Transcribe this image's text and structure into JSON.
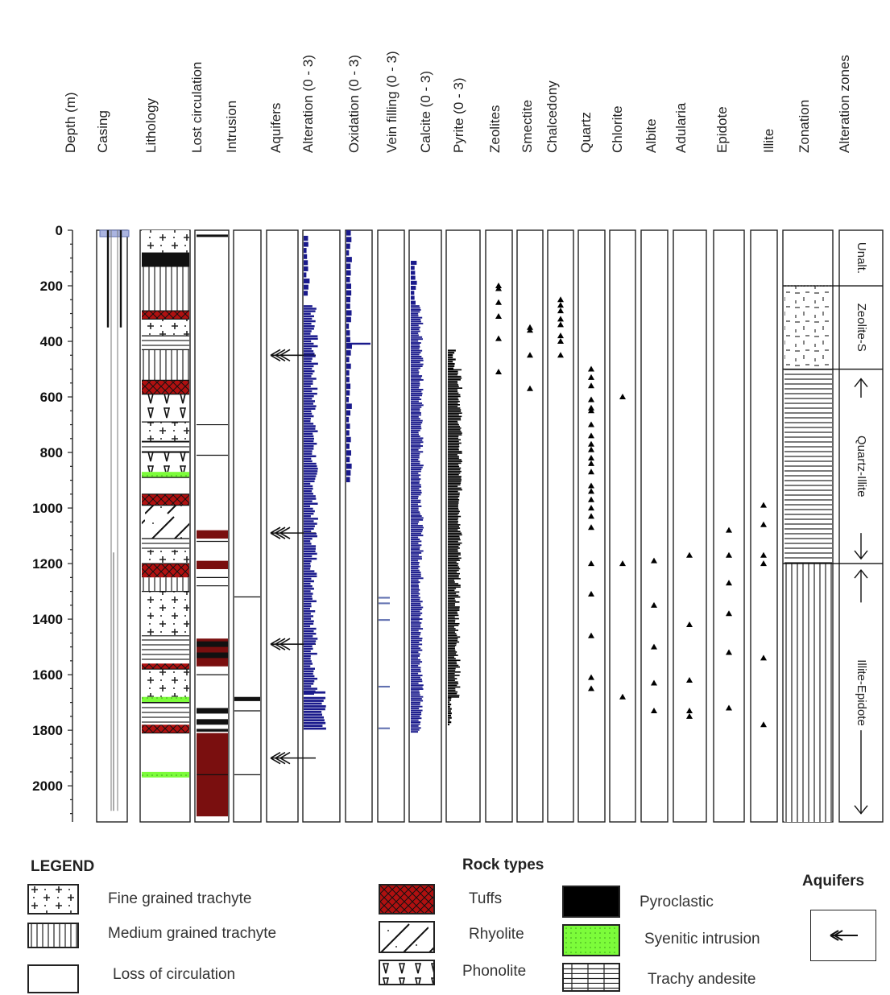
{
  "headers": [
    "Depth (m)",
    "Casing",
    "Lithology",
    "Lost circulation",
    "Intrusion",
    "Aquifers",
    "Alteration (0 - 3)",
    "Oxidation (0 - 3)",
    "Vein filling (0 - 3)",
    "Calcite (0 - 3)",
    "Pyrite (0 - 3)",
    "Zeolites",
    "Smectite",
    "Chalcedony",
    "Quartz",
    "Chlorite",
    "Albite",
    "Adularia",
    "Epidote",
    "Illite",
    "Zonation",
    "Alteration zones"
  ],
  "depth_ticks": [
    "0",
    "200",
    "400",
    "600",
    "800",
    "1000",
    "1200",
    "1400",
    "1600",
    "1800",
    "2000"
  ],
  "alteration_zones": [
    "Unalt.",
    "Zeolite-S",
    "Quartz-Illite",
    "Illite-Epidote"
  ],
  "aquifer_depths_m": [
    450,
    1090,
    1490,
    1900
  ],
  "mineral_occurrence_m": {
    "Zeolites": [
      200,
      210,
      260,
      310,
      390,
      510
    ],
    "Smectite": [
      350,
      360,
      450,
      570
    ],
    "Chalcedony": [
      250,
      270,
      290,
      320,
      340,
      380,
      400,
      450
    ],
    "Quartz": [
      500,
      530,
      560,
      610,
      640,
      650,
      700,
      740,
      770,
      790,
      820,
      840,
      870,
      920,
      940,
      970,
      1000,
      1030,
      1070,
      1200,
      1310,
      1460,
      1610,
      1650
    ],
    "Chlorite": [
      600,
      1200,
      1680
    ],
    "Albite": [
      1190,
      1350,
      1500,
      1630,
      1730
    ],
    "Adularia": [
      1170,
      1420,
      1620,
      1730,
      1750
    ],
    "Epidote": [
      1080,
      1170,
      1270,
      1380,
      1520,
      1720
    ],
    "Illite": [
      990,
      1060,
      1170,
      1200,
      1540,
      1780
    ]
  },
  "legend": {
    "title": "LEGEND",
    "rock_types_title": "Rock types",
    "aquifers_title": "Aquifers",
    "items": {
      "fine": "Fine grained trachyte",
      "medium": "Medium grained trachyte",
      "loss": "Loss of circulation",
      "tuffs": "Tuffs",
      "rhyolite": "Rhyolite",
      "phonolite": "Phonolite",
      "pyroclastic": "Pyroclastic",
      "syenitic": "Syenitic intrusion",
      "trachy_andesite": "Trachy andesite"
    }
  },
  "colors": {
    "alteration_bars": "#1a1a8c",
    "tuffs": "#b01010",
    "syenitic": "#22bb22",
    "lost_circulation": "#7a0f0f",
    "pyroclastic": "#000000"
  }
}
